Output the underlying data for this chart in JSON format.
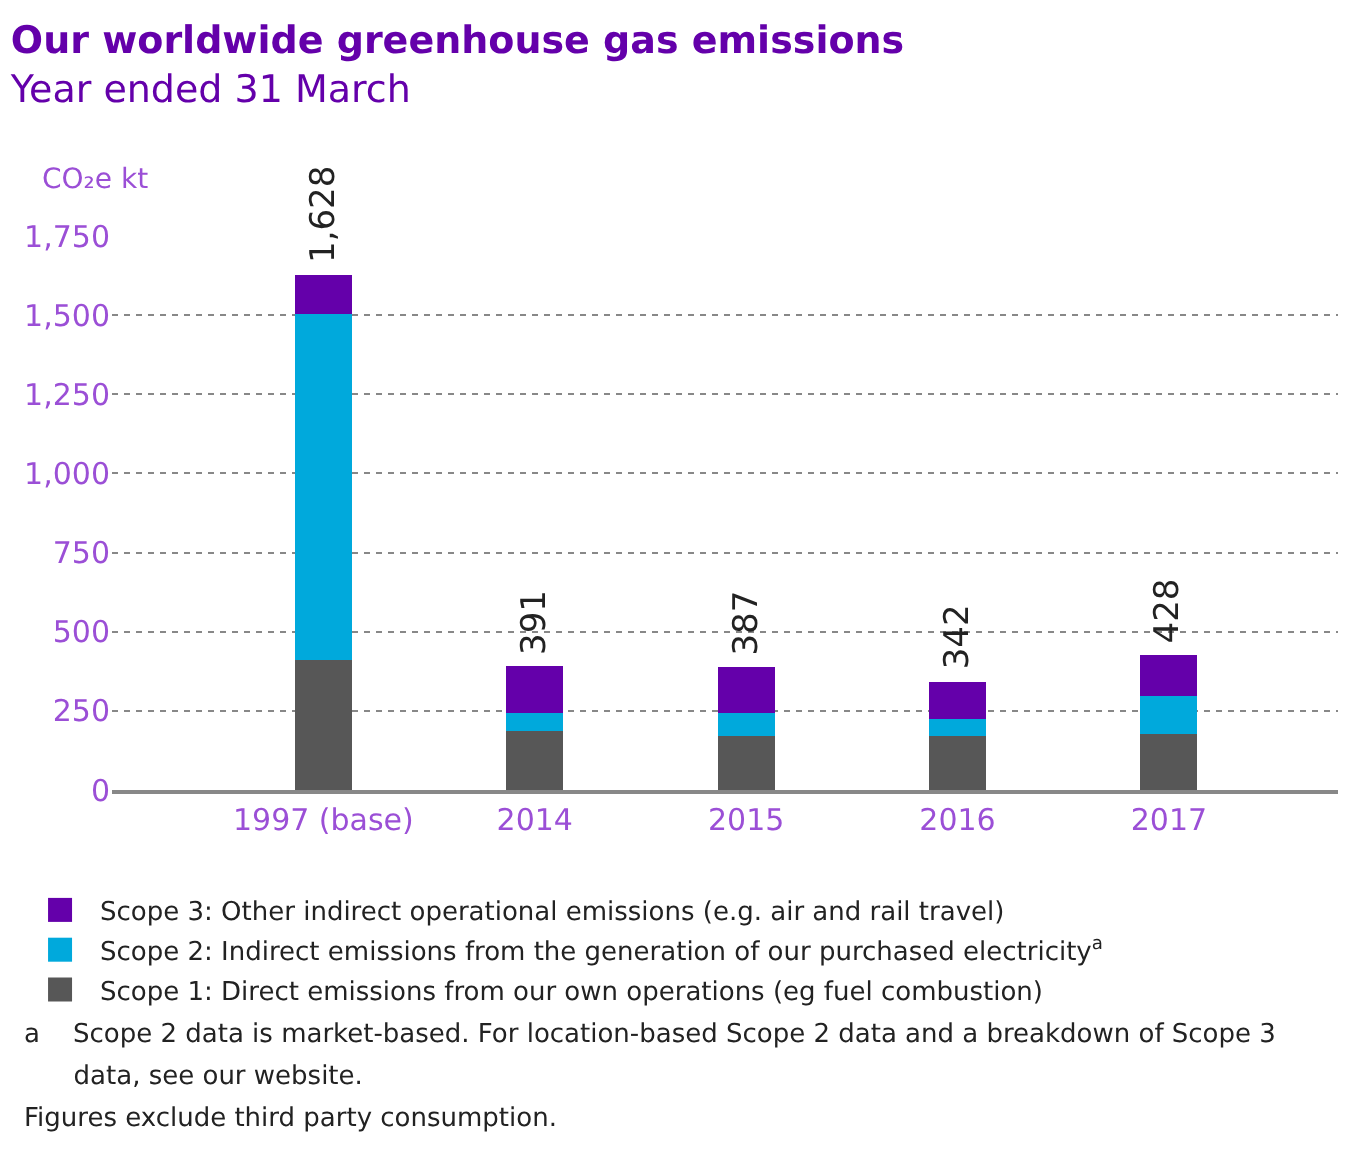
{
  "chart_data": {
    "type": "bar",
    "stacked": true,
    "title": "Our worldwide greenhouse gas emissions",
    "subtitle": "Year ended 31 March",
    "ylabel": "CO₂e kt",
    "categories": [
      "1997 (base)",
      "2014",
      "2015",
      "2016",
      "2017"
    ],
    "series": [
      {
        "name": "Scope 1: Direct emissions from our own operations (eg fuel combustion)",
        "color": "#575757",
        "values": [
          412,
          185,
          172,
          172,
          178
        ]
      },
      {
        "name": "Scope 2: Indirect emissions from the generation of our purchased electricity$^{a}$",
        "color": "#00a9dc",
        "values": [
          1091,
          58,
          71,
          52,
          118
        ]
      },
      {
        "name": "Scope 3: Other indirect operational emissions (e.g. air and rail travel)",
        "color": "#6400aa",
        "values": [
          125,
          148,
          144,
          118,
          132
        ]
      }
    ],
    "totals": [
      "1,628",
      "391",
      "387",
      "342",
      "428"
    ],
    "ylim": [
      0,
      1750
    ],
    "yticks": [
      0,
      250,
      500,
      750,
      {
        "value": 1000,
        "label": "1,000"
      },
      {
        "value": 1250,
        "label": "1,250"
      },
      {
        "value": 1500,
        "label": "1,500"
      },
      {
        "value": 1750,
        "label": "1,750"
      }
    ],
    "grid": "y",
    "legend": "bottom",
    "annotations": [
      "a    Scope 2 data is market-based. For location-based Scope 2 data and a breakdown of Scope 3",
      "      data, see our website.",
      "Figures exclude third party consumption."
    ]
  }
}
